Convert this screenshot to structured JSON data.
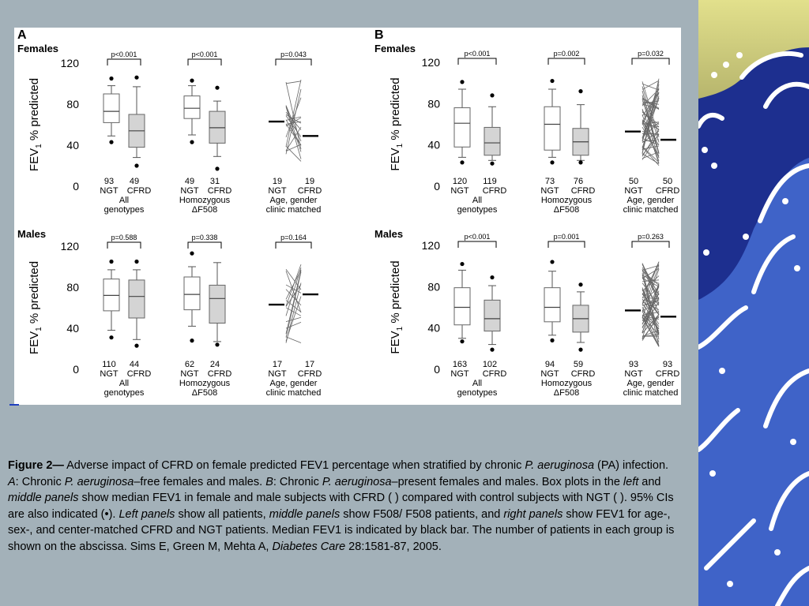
{
  "slide": {
    "theme_colors": {
      "background": "#a3b1b9",
      "wave_dark": "#1d2f8f",
      "wave_mid": "#3f63c8",
      "wave_light": "#ffffff",
      "sky_top": "#e2e08c",
      "sky_bottom": "#706f3a"
    }
  },
  "figure": {
    "panel_labels": {
      "a": "A",
      "b": "B"
    },
    "row_labels": {
      "females": "Females",
      "males": "Males"
    },
    "ylabel_main": "FEV",
    "ylabel_sub": "1",
    "ylabel_rest": " % predicted"
  },
  "caption": {
    "fig_label": "Figure 2—",
    "segments": [
      {
        "t": " Adverse impact of CFRD on female predicted FEV1 percentage when stratified by chronic ",
        "i": false
      },
      {
        "t": "P. aeruginosa",
        "i": true
      },
      {
        "t": " (PA) infection. ",
        "i": false
      },
      {
        "t": "A",
        "i": true
      },
      {
        "t": ": Chronic ",
        "i": false
      },
      {
        "t": "P. aeruginosa",
        "i": true
      },
      {
        "t": "–free females and males. ",
        "i": false
      },
      {
        "t": "B",
        "i": true
      },
      {
        "t": ": Chronic ",
        "i": false
      },
      {
        "t": "P. aeruginosa",
        "i": true
      },
      {
        "t": "–present females and males. Box plots in the ",
        "i": false
      },
      {
        "t": "left",
        "i": true
      },
      {
        "t": " and ",
        "i": false
      },
      {
        "t": "middle panels",
        "i": true
      },
      {
        "t": " show median FEV1 in female and male subjects with CFRD ( ) compared with control subjects with NGT ( ). 95% CIs are also indicated (•). ",
        "i": false
      },
      {
        "t": "Left panels",
        "i": true
      },
      {
        "t": " show all patients, ",
        "i": false
      },
      {
        "t": "middle panels",
        "i": true
      },
      {
        "t": " show  F508/ F508 patients, and ",
        "i": false
      },
      {
        "t": "right panels",
        "i": true
      },
      {
        "t": " show FEV1 for age-, sex-, and center-matched CFRD and NGT patients. Median FEV1 is indicated by black bar. The number of patients in each group is shown on the abscissa.   Sims E, Green M, Mehta A, ",
        "i": false
      },
      {
        "t": "Diabetes Care",
        "i": true
      },
      {
        "t": " 28:1581-87, 2005.",
        "i": false
      }
    ]
  },
  "chart_data": [
    {
      "type": "box",
      "panel": "A",
      "sex": "Females",
      "ylabel": "FEV1 % predicted",
      "ylim": [
        0,
        120
      ],
      "yticks": [
        0,
        40,
        80,
        120
      ],
      "groups": [
        {
          "label_lines": [
            "All",
            "genotypes"
          ],
          "p": "p<0.001",
          "boxes": [
            {
              "name": "NGT",
              "n": "93",
              "q1": 62,
              "median": 73,
              "q3": 90,
              "low": 49,
              "high": 98,
              "outliers": [
                43,
                105
              ],
              "fill": "#ffffff"
            },
            {
              "name": "CFRD",
              "n": "49",
              "q1": 38,
              "median": 54,
              "q3": 70,
              "low": 28,
              "high": 97,
              "outliers": [
                20,
                106
              ],
              "fill": "#d4d4d4"
            }
          ]
        },
        {
          "label_lines": [
            "Homozygous",
            "ΔF508"
          ],
          "p": "p<0.001",
          "boxes": [
            {
              "name": "NGT",
              "n": "49",
              "q1": 66,
              "median": 76,
              "q3": 88,
              "low": 50,
              "high": 98,
              "outliers": [
                43,
                103
              ],
              "fill": "#ffffff"
            },
            {
              "name": "CFRD",
              "n": "31",
              "q1": 42,
              "median": 57,
              "q3": 73,
              "low": 29,
              "high": 83,
              "outliers": [
                17,
                96
              ],
              "fill": "#d4d4d4"
            }
          ]
        },
        {
          "label_lines": [
            "Age, gender",
            "clinic matched"
          ],
          "p": "p=0.043",
          "paired": {
            "n_ngt": "19",
            "n_cfrd": "19",
            "median_ngt": 63,
            "median_cfrd": 49
          }
        }
      ]
    },
    {
      "type": "box",
      "panel": "B",
      "sex": "Females",
      "ylabel": "FEV1 % predicted",
      "ylim": [
        0,
        120
      ],
      "yticks": [
        0,
        40,
        80,
        120
      ],
      "groups": [
        {
          "label_lines": [
            "All",
            "genotypes"
          ],
          "p": "p<0.001",
          "boxes": [
            {
              "name": "NGT",
              "n": "120",
              "q1": 38,
              "median": 61,
              "q3": 76,
              "low": 28,
              "high": 94,
              "outliers": [
                23,
                101
              ],
              "fill": "#ffffff"
            },
            {
              "name": "CFRD",
              "n": "119",
              "q1": 30,
              "median": 42,
              "q3": 57,
              "low": 25,
              "high": 77,
              "outliers": [
                22,
                88
              ],
              "fill": "#d4d4d4"
            }
          ]
        },
        {
          "label_lines": [
            "Homozygous",
            "ΔF508"
          ],
          "p": "p=0.002",
          "boxes": [
            {
              "name": "NGT",
              "n": "73",
              "q1": 35,
              "median": 60,
              "q3": 77,
              "low": 28,
              "high": 94,
              "outliers": [
                23,
                102
              ],
              "fill": "#ffffff"
            },
            {
              "name": "CFRD",
              "n": "76",
              "q1": 30,
              "median": 43,
              "q3": 56,
              "low": 25,
              "high": 79,
              "outliers": [
                23,
                92
              ],
              "fill": "#d4d4d4"
            }
          ]
        },
        {
          "label_lines": [
            "Age, gender",
            "clinic matched"
          ],
          "p": "p=0.032",
          "paired": {
            "n_ngt": "50",
            "n_cfrd": "50",
            "median_ngt": 53,
            "median_cfrd": 45
          }
        }
      ]
    },
    {
      "type": "box",
      "panel": "A",
      "sex": "Males",
      "ylabel": "FEV1 % predicted",
      "ylim": [
        0,
        120
      ],
      "yticks": [
        0,
        40,
        80,
        120
      ],
      "groups": [
        {
          "label_lines": [
            "All",
            "genotypes"
          ],
          "p": "p=0.588",
          "boxes": [
            {
              "name": "NGT",
              "n": "110",
              "q1": 57,
              "median": 72,
              "q3": 88,
              "low": 38,
              "high": 97,
              "outliers": [
                31,
                105
              ],
              "fill": "#ffffff"
            },
            {
              "name": "CFRD",
              "n": "44",
              "q1": 50,
              "median": 71,
              "q3": 87,
              "low": 29,
              "high": 97,
              "outliers": [
                23,
                105
              ],
              "fill": "#d4d4d4"
            }
          ]
        },
        {
          "label_lines": [
            "Homozygous",
            "ΔF508"
          ],
          "p": "p=0.338",
          "boxes": [
            {
              "name": "NGT",
              "n": "62",
              "q1": 58,
              "median": 73,
              "q3": 90,
              "low": 42,
              "high": 100,
              "outliers": [
                28,
                113
              ],
              "fill": "#ffffff"
            },
            {
              "name": "CFRD",
              "n": "24",
              "q1": 45,
              "median": 69,
              "q3": 82,
              "low": 27,
              "high": 104,
              "outliers": [
                24
              ],
              "fill": "#d4d4d4"
            }
          ]
        },
        {
          "label_lines": [
            "Age, gender",
            "clinic matched"
          ],
          "p": "p=0.164",
          "paired": {
            "n_ngt": "17",
            "n_cfrd": "17",
            "median_ngt": 63,
            "median_cfrd": 73
          }
        }
      ]
    },
    {
      "type": "box",
      "panel": "B",
      "sex": "Males",
      "ylabel": "FEV1 % predicted",
      "ylim": [
        0,
        120
      ],
      "yticks": [
        0,
        40,
        80,
        120
      ],
      "groups": [
        {
          "label_lines": [
            "All",
            "genotypes"
          ],
          "p": "p<0.001",
          "boxes": [
            {
              "name": "NGT",
              "n": "163",
              "q1": 43,
              "median": 60,
              "q3": 79,
              "low": 30,
              "high": 96,
              "outliers": [
                27,
                102
              ],
              "fill": "#ffffff"
            },
            {
              "name": "CFRD",
              "n": "102",
              "q1": 37,
              "median": 49,
              "q3": 67,
              "low": 24,
              "high": 81,
              "outliers": [
                19,
                89
              ],
              "fill": "#d4d4d4"
            }
          ]
        },
        {
          "label_lines": [
            "Homozygous",
            "ΔF508"
          ],
          "p": "p=0.001",
          "boxes": [
            {
              "name": "NGT",
              "n": "94",
              "q1": 46,
              "median": 60,
              "q3": 79,
              "low": 33,
              "high": 95,
              "outliers": [
                28,
                104
              ],
              "fill": "#ffffff"
            },
            {
              "name": "CFRD",
              "n": "59",
              "q1": 36,
              "median": 49,
              "q3": 62,
              "low": 26,
              "high": 75,
              "outliers": [
                19,
                82
              ],
              "fill": "#d4d4d4"
            }
          ]
        },
        {
          "label_lines": [
            "Age, gender",
            "clinic matched"
          ],
          "p": "p=0.263",
          "paired": {
            "n_ngt": "93",
            "n_cfrd": "93",
            "median_ngt": 57,
            "median_cfrd": 51
          }
        }
      ]
    }
  ]
}
